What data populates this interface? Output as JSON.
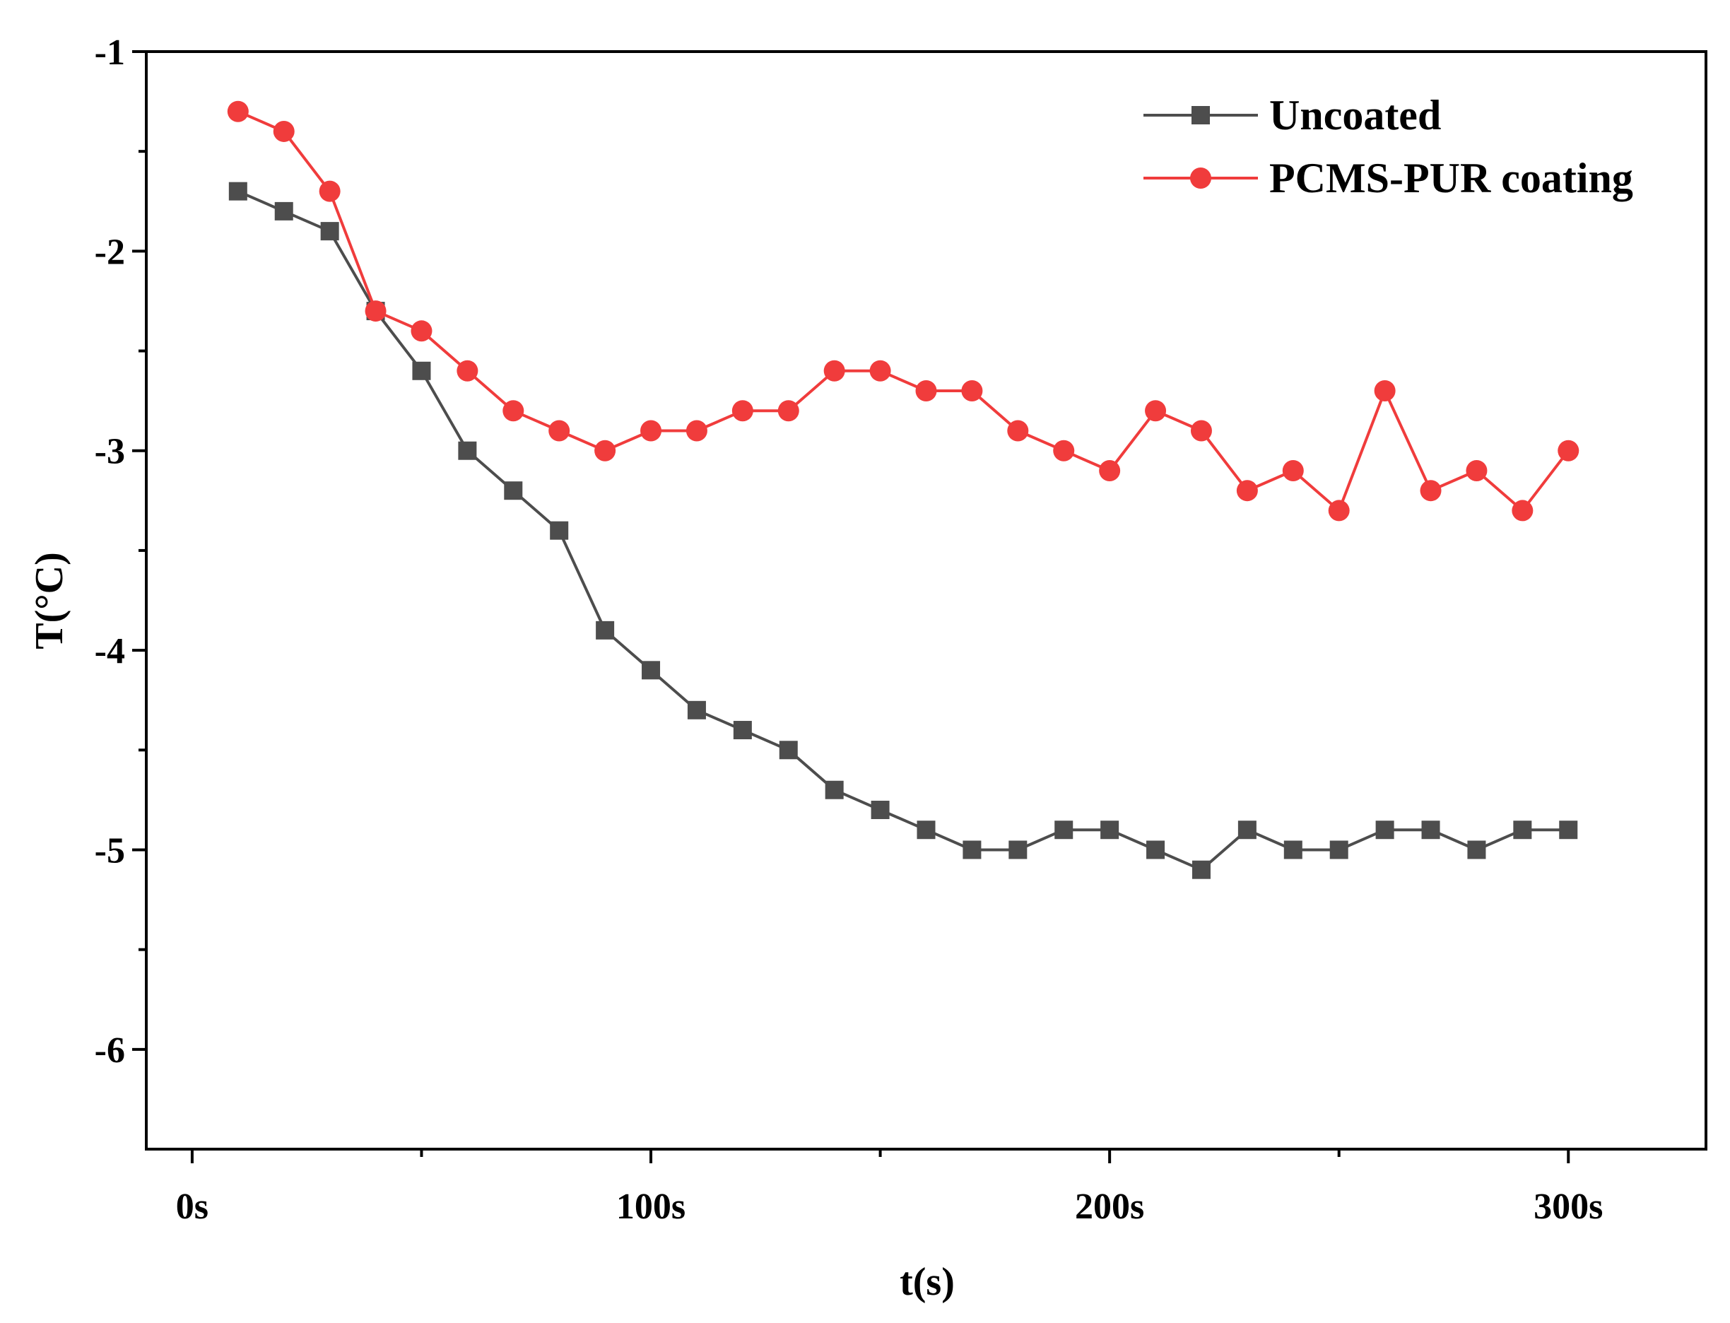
{
  "chart_data": {
    "type": "line",
    "title": "",
    "xlabel": "t(s)",
    "ylabel": "T(°C)",
    "xlim": [
      -10,
      330
    ],
    "ylim": [
      -6.5,
      -1
    ],
    "x_ticks": [
      {
        "value": 0,
        "label": "0s"
      },
      {
        "value": 100,
        "label": "100s"
      },
      {
        "value": 200,
        "label": "200s"
      },
      {
        "value": 300,
        "label": "300s"
      }
    ],
    "y_ticks": [
      {
        "value": -1,
        "label": "-1"
      },
      {
        "value": -2,
        "label": "-2"
      },
      {
        "value": -3,
        "label": "-3"
      },
      {
        "value": -4,
        "label": "-4"
      },
      {
        "value": -5,
        "label": "-5"
      },
      {
        "value": -6,
        "label": "-6"
      }
    ],
    "x_minor_ticks": [
      50,
      150,
      250
    ],
    "y_minor_ticks": [
      -1.5,
      -2.5,
      -3.5,
      -4.5,
      -5.5
    ],
    "grid": false,
    "legend_position": "top-right",
    "x": [
      10,
      20,
      30,
      40,
      50,
      60,
      70,
      80,
      90,
      100,
      110,
      120,
      130,
      140,
      150,
      160,
      170,
      180,
      190,
      200,
      210,
      220,
      230,
      240,
      250,
      260,
      270,
      280,
      290,
      300
    ],
    "series": [
      {
        "name": "Uncoated",
        "color": "#4d4d4d",
        "marker": "square",
        "values": [
          -1.7,
          -1.8,
          -1.9,
          -2.3,
          -2.6,
          -3.0,
          -3.2,
          -3.4,
          -3.9,
          -4.1,
          -4.3,
          -4.4,
          -4.5,
          -4.7,
          -4.8,
          -4.9,
          -5.0,
          -5.0,
          -4.9,
          -4.9,
          -5.0,
          -5.1,
          -4.9,
          -5.0,
          -5.0,
          -4.9,
          -4.9,
          -5.0,
          -4.9,
          -4.9
        ]
      },
      {
        "name": "PCMS-PUR coating",
        "color": "#f03c3c",
        "marker": "circle",
        "values": [
          -1.3,
          -1.4,
          -1.7,
          -2.3,
          -2.4,
          -2.6,
          -2.8,
          -2.9,
          -3.0,
          -2.9,
          -2.9,
          -2.8,
          -2.8,
          -2.6,
          -2.6,
          -2.7,
          -2.7,
          -2.9,
          -3.0,
          -3.1,
          -2.8,
          -2.9,
          -3.2,
          -3.1,
          -3.3,
          -2.7,
          -3.2,
          -3.1,
          -3.3,
          -3.0
        ]
      }
    ]
  }
}
